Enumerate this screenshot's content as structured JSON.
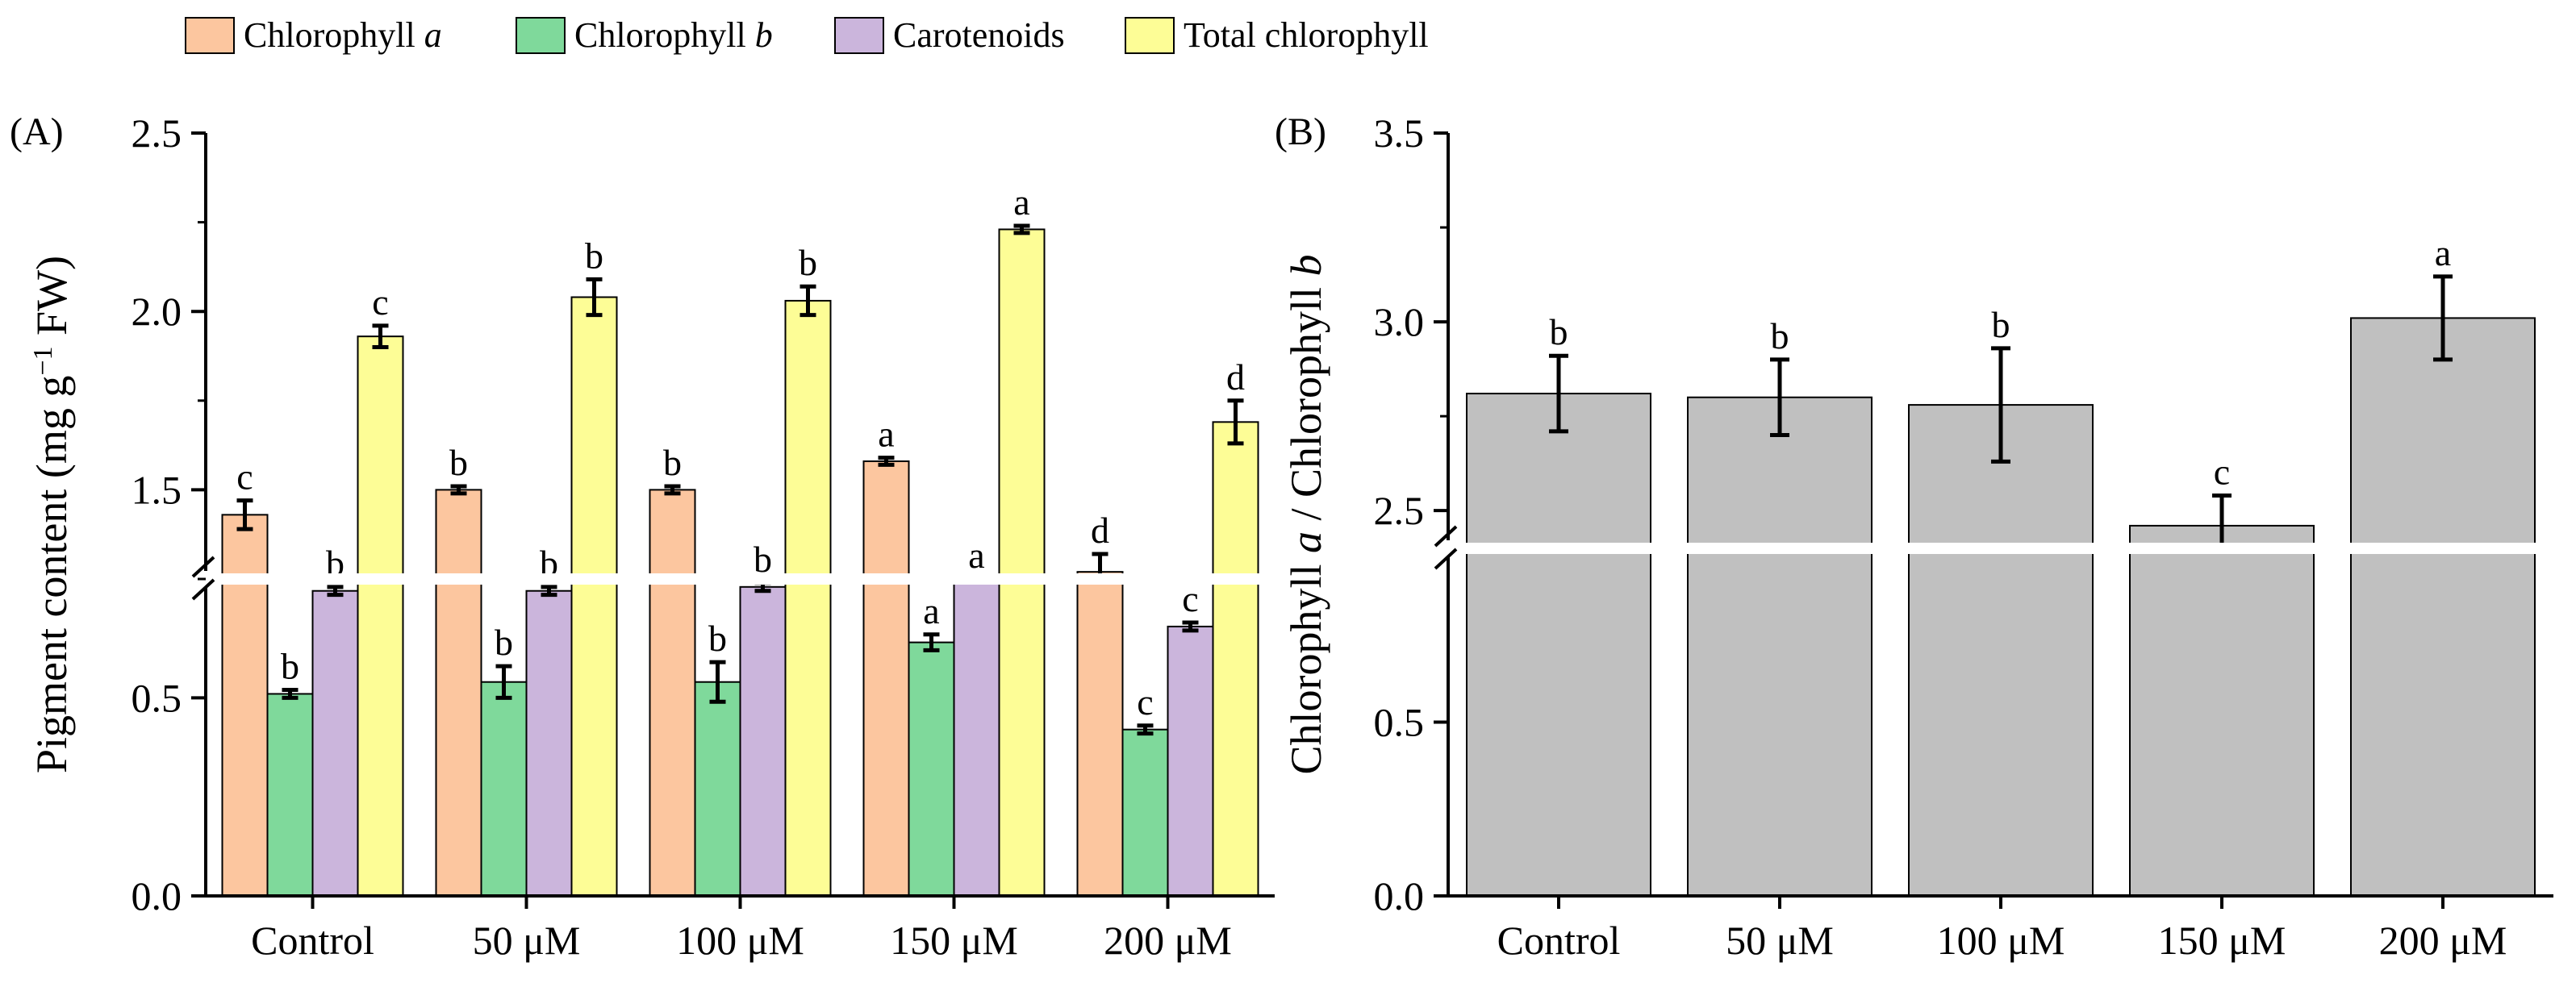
{
  "legend": [
    {
      "key": "chl_a",
      "label": "Chlorophyll ",
      "italic": "a",
      "color": "#fcc69f"
    },
    {
      "key": "chl_b",
      "label": "Chlorophyll ",
      "italic": "b",
      "color": "#7fd99b"
    },
    {
      "key": "car",
      "label": "Carotenoids",
      "italic": "",
      "color": "#cbb5dc"
    },
    {
      "key": "total",
      "label": "Total chlorophyll",
      "italic": "",
      "color": "#fdfd96"
    }
  ],
  "chart_data": [
    {
      "panel_label": "(A)",
      "type": "bar",
      "ylabel_pre": "Pigment content (mg g",
      "ylabel_sup": "−1",
      "ylabel_post": " FW)",
      "broken_axis": {
        "lower": [
          0.0,
          0.8
        ],
        "upper": [
          1.25,
          2.5
        ]
      },
      "yticks_lower": [
        "0.0",
        "0.5"
      ],
      "yticks_upper": [
        "1.5",
        "2.0",
        "2.5"
      ],
      "categories": [
        "Control",
        "50 μM",
        "100 μM",
        "150 μM",
        "200 μM"
      ],
      "series": [
        {
          "name": "Chlorophyll a",
          "color": "#fcc69f",
          "values": [
            1.43,
            1.5,
            1.5,
            1.58,
            1.27
          ],
          "errors": [
            0.04,
            0.01,
            0.01,
            0.01,
            0.05
          ],
          "letters": [
            "c",
            "b",
            "b",
            "a",
            "d"
          ]
        },
        {
          "name": "Chlorophyll b",
          "color": "#7fd99b",
          "values": [
            0.51,
            0.54,
            0.54,
            0.64,
            0.42
          ],
          "errors": [
            0.01,
            0.04,
            0.05,
            0.02,
            0.01
          ],
          "letters": [
            "b",
            "b",
            "b",
            "a",
            "c"
          ]
        },
        {
          "name": "Carotenoids",
          "color": "#cbb5dc",
          "values": [
            0.77,
            0.77,
            0.78,
            0.81,
            0.68
          ],
          "errors": [
            0.01,
            0.01,
            0.01,
            0.01,
            0.01
          ],
          "letters": [
            "b",
            "b",
            "b",
            "a",
            "c"
          ]
        },
        {
          "name": "Total chlorophyll",
          "color": "#fdfd96",
          "values": [
            1.93,
            2.04,
            2.03,
            2.23,
            1.69
          ],
          "errors": [
            0.03,
            0.05,
            0.04,
            0.01,
            0.06
          ],
          "letters": [
            "c",
            "b",
            "b",
            "a",
            "d"
          ]
        }
      ]
    },
    {
      "panel_label": "(B)",
      "type": "bar",
      "ylabel_pre": "Chlorophyll ",
      "ylabel_it1": "a",
      "ylabel_mid": " / Chlorophyll ",
      "ylabel_it2": "b",
      "broken_axis": {
        "lower": [
          0.0,
          1.0
        ],
        "upper": [
          2.4,
          3.5
        ]
      },
      "yticks_lower": [
        "0.0",
        "0.5"
      ],
      "yticks_upper": [
        "2.5",
        "3.0",
        "3.5"
      ],
      "categories": [
        "Control",
        "50 μM",
        "100 μM",
        "150 μM",
        "200 μM"
      ],
      "series": [
        {
          "name": "Chlorophyll a / Chlorophyll b",
          "color": "#c0c0c0",
          "values": [
            2.81,
            2.8,
            2.78,
            2.46,
            3.01
          ],
          "errors": [
            0.1,
            0.1,
            0.15,
            0.08,
            0.11
          ],
          "letters": [
            "b",
            "b",
            "b",
            "c",
            "a"
          ]
        }
      ]
    }
  ]
}
